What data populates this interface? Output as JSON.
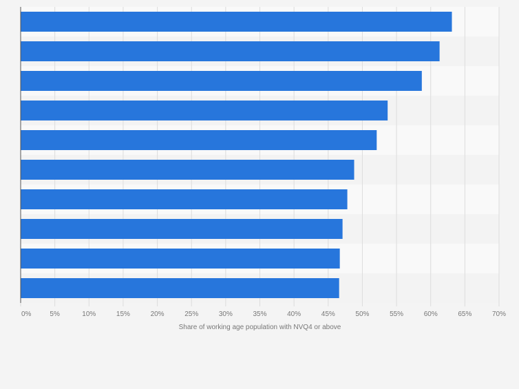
{
  "chart_data": {
    "type": "bar",
    "orientation": "horizontal",
    "title": "",
    "xlabel": "Share of working age population with NVQ4 or above",
    "ylabel": "",
    "categories": [
      "",
      "",
      "",
      "",
      "",
      "",
      "",
      "",
      "",
      ""
    ],
    "values": [
      63.1,
      61.3,
      58.7,
      53.7,
      52.1,
      48.8,
      47.8,
      47.1,
      46.7,
      46.6
    ],
    "xlim": [
      0,
      70
    ],
    "ticks": [
      "0%",
      "5%",
      "10%",
      "15%",
      "20%",
      "25%",
      "30%",
      "35%",
      "40%",
      "45%",
      "50%",
      "55%",
      "60%",
      "65%",
      "70%"
    ],
    "tick_values": [
      0,
      5,
      10,
      15,
      20,
      25,
      30,
      35,
      40,
      45,
      50,
      55,
      60,
      65,
      70
    ],
    "grid": true,
    "legend": "none",
    "colors": {
      "bar": "#2776dc",
      "band_light": "#f9f9f9",
      "band_dark": "#f3f3f3",
      "grid": "#dcdcdc",
      "axis": "#555555",
      "text": "#777777"
    }
  }
}
